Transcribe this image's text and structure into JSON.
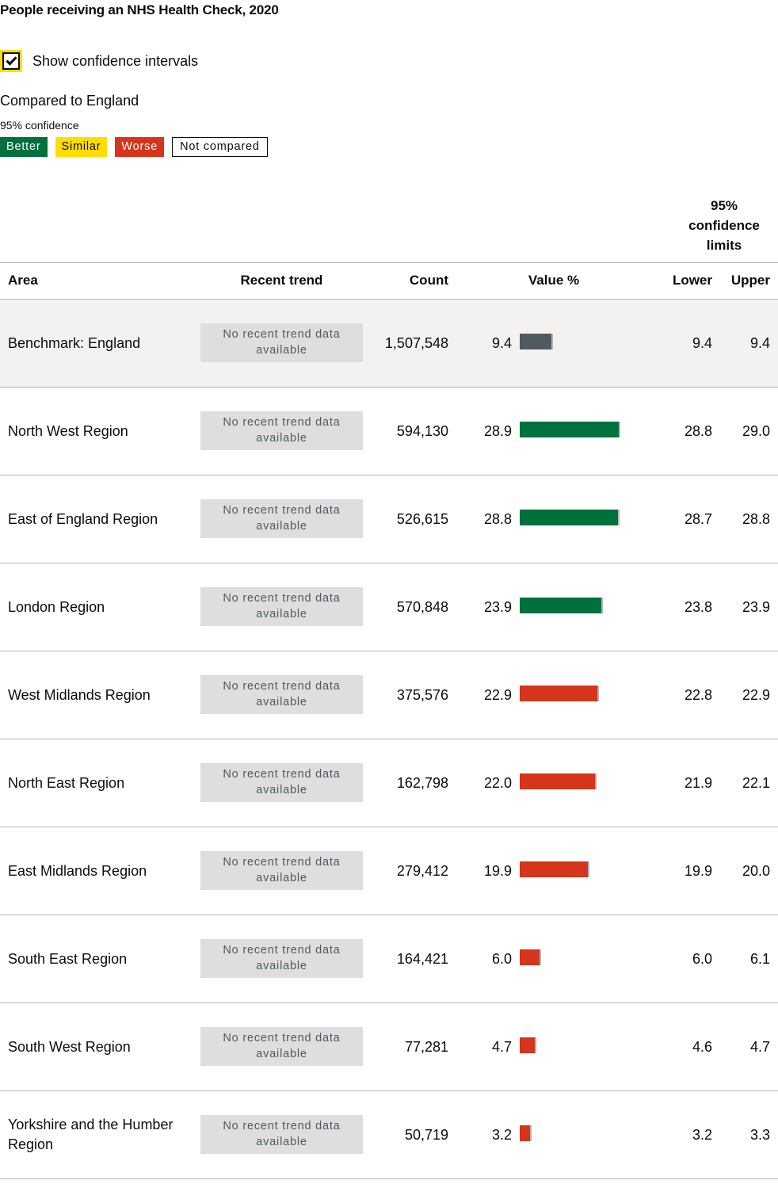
{
  "title": "People receiving an NHS Health Check, 2020",
  "ci_toggle": {
    "label": "Show confidence intervals",
    "checked": true
  },
  "comparison": {
    "heading": "Compared to England",
    "confidence": "95% confidence",
    "legend": [
      {
        "label": "Better",
        "color": "#00703c"
      },
      {
        "label": "Similar",
        "color": "#ffdd00"
      },
      {
        "label": "Worse",
        "color": "#d4351c"
      },
      {
        "label": "Not compared",
        "color": "#ffffff"
      }
    ]
  },
  "table": {
    "ci_group_header": "95% confidence limits",
    "columns": {
      "area": "Area",
      "trend": "Recent trend",
      "count": "Count",
      "value": "Value %",
      "lower": "Lower",
      "upper": "Upper"
    }
  },
  "chart_data": {
    "type": "bar",
    "title": "People receiving an NHS Health Check, 2020",
    "unit": "%",
    "x_max": 30,
    "status_colors": {
      "benchmark": "#505a5f",
      "better": "#00703c",
      "similar": "#ffdd00",
      "worse": "#d4351c",
      "ci": "#b1b4b6"
    },
    "rows": [
      {
        "area": "Benchmark: England",
        "trend": "No recent trend data available",
        "count": "1,507,548",
        "value": 9.4,
        "value_label": "9.4",
        "lower": "9.4",
        "upper": "9.4",
        "lower_num": 9.4,
        "upper_num": 9.4,
        "status": "benchmark"
      },
      {
        "area": "North West Region",
        "trend": "No recent trend data available",
        "count": "594,130",
        "value": 28.9,
        "value_label": "28.9",
        "lower": "28.8",
        "upper": "29.0",
        "lower_num": 28.8,
        "upper_num": 29.0,
        "status": "better"
      },
      {
        "area": "East of England Region",
        "trend": "No recent trend data available",
        "count": "526,615",
        "value": 28.8,
        "value_label": "28.8",
        "lower": "28.7",
        "upper": "28.8",
        "lower_num": 28.7,
        "upper_num": 28.8,
        "status": "better"
      },
      {
        "area": "London Region",
        "trend": "No recent trend data available",
        "count": "570,848",
        "value": 23.9,
        "value_label": "23.9",
        "lower": "23.8",
        "upper": "23.9",
        "lower_num": 23.8,
        "upper_num": 23.9,
        "status": "better"
      },
      {
        "area": "West Midlands Region",
        "trend": "No recent trend data available",
        "count": "375,576",
        "value": 22.9,
        "value_label": "22.9",
        "lower": "22.8",
        "upper": "22.9",
        "lower_num": 22.8,
        "upper_num": 22.9,
        "status": "worse"
      },
      {
        "area": "North East Region",
        "trend": "No recent trend data available",
        "count": "162,798",
        "value": 22.0,
        "value_label": "22.0",
        "lower": "21.9",
        "upper": "22.1",
        "lower_num": 21.9,
        "upper_num": 22.1,
        "status": "worse"
      },
      {
        "area": "East Midlands Region",
        "trend": "No recent trend data available",
        "count": "279,412",
        "value": 19.9,
        "value_label": "19.9",
        "lower": "19.9",
        "upper": "20.0",
        "lower_num": 19.9,
        "upper_num": 20.0,
        "status": "worse"
      },
      {
        "area": "South East Region",
        "trend": "No recent trend data available",
        "count": "164,421",
        "value": 6.0,
        "value_label": "6.0",
        "lower": "6.0",
        "upper": "6.1",
        "lower_num": 6.0,
        "upper_num": 6.1,
        "status": "worse"
      },
      {
        "area": "South West Region",
        "trend": "No recent trend data available",
        "count": "77,281",
        "value": 4.7,
        "value_label": "4.7",
        "lower": "4.6",
        "upper": "4.7",
        "lower_num": 4.6,
        "upper_num": 4.7,
        "status": "worse"
      },
      {
        "area": "Yorkshire and the Humber Region",
        "trend": "No recent trend data available",
        "count": "50,719",
        "value": 3.2,
        "value_label": "3.2",
        "lower": "3.2",
        "upper": "3.3",
        "lower_num": 3.2,
        "upper_num": 3.3,
        "status": "worse"
      }
    ]
  }
}
